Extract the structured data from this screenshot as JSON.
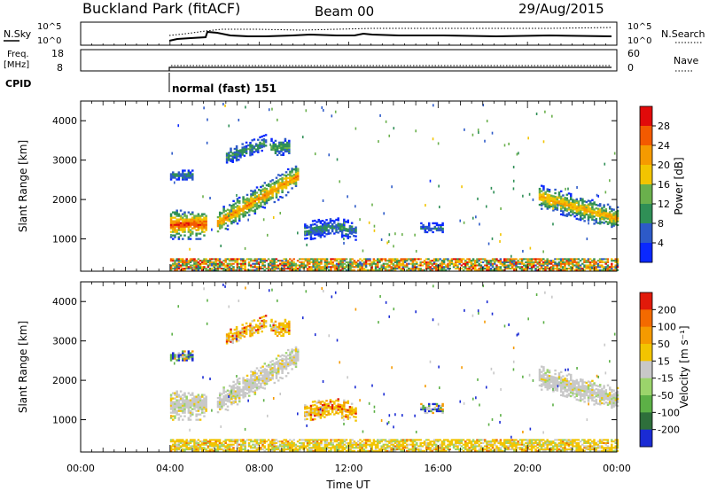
{
  "header": {
    "site": "Buckland Park (fitACF)",
    "beam": "Beam 00",
    "date": "29/Aug/2015"
  },
  "panels": {
    "nsky": {
      "left_label": "N.Sky",
      "right_label": "N.Search",
      "left_ticks": [
        "10^5",
        "10^0"
      ],
      "right_ticks": [
        "10^5",
        "10^0"
      ]
    },
    "freq": {
      "left_label_1": "Freq.",
      "left_label_2": "[MHz]",
      "right_label": "Nave",
      "left_ticks": [
        "18",
        "8"
      ],
      "right_ticks": [
        "60",
        "0"
      ]
    },
    "cpid": {
      "label": "CPID",
      "mode": "normal (fast) 151"
    }
  },
  "chart_data": [
    {
      "type": "heatmap",
      "name": "power",
      "ylabel": "Slant Range [km]",
      "xlabel": "",
      "ylim": [
        180,
        4500
      ],
      "xlim": [
        0,
        24
      ],
      "y_ticks": [
        "1000",
        "2000",
        "3000",
        "4000"
      ],
      "colorbar": {
        "label": "Power [dB]",
        "ticks": [
          "4",
          "8",
          "12",
          "16",
          "20",
          "24",
          "28"
        ],
        "range": [
          0,
          30
        ]
      },
      "x_tick_labels": [
        "00:00",
        "04:00",
        "08:00",
        "12:00",
        "16:00",
        "20:00",
        "00:00"
      ]
    },
    {
      "type": "heatmap",
      "name": "velocity",
      "ylabel": "Slant Range [km]",
      "xlabel": "Time UT",
      "ylim": [
        180,
        4500
      ],
      "xlim": [
        0,
        24
      ],
      "y_ticks": [
        "1000",
        "2000",
        "3000",
        "4000"
      ],
      "colorbar": {
        "label": "Velocity [m s⁻¹]",
        "ticks": [
          "200",
          "100",
          "50",
          "15",
          "-15",
          "-50",
          "-100",
          "-200"
        ]
      },
      "x_tick_labels": [
        "00:00",
        "04:00",
        "08:00",
        "12:00",
        "16:00",
        "20:00",
        "00:00"
      ]
    }
  ],
  "colors": {
    "power_scale": [
      "#0a28ff",
      "#2d5ac8",
      "#2f8f56",
      "#6ab04c",
      "#f2c400",
      "#f59a00",
      "#f35a00",
      "#e10a0a"
    ],
    "velocity_scale": [
      "#1a2bd4",
      "#2e6f3b",
      "#5cb046",
      "#9bd46b",
      "#c8c8c8",
      "#f2c400",
      "#f59a00",
      "#f36a00",
      "#e11a0a"
    ]
  }
}
